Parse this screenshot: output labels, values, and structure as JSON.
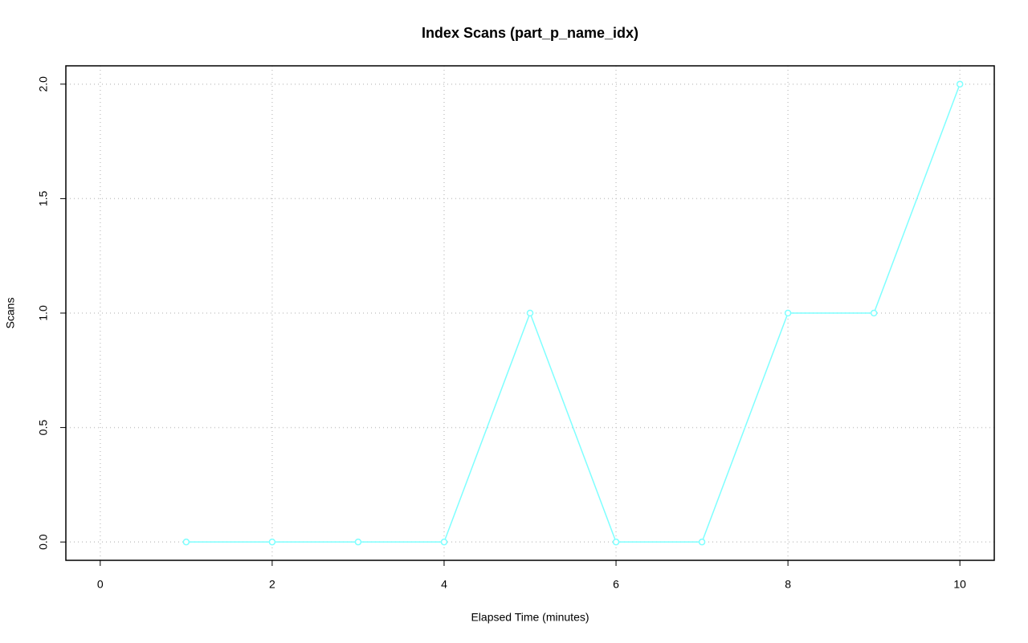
{
  "chart_data": {
    "type": "line",
    "title": "Index Scans (part_p_name_idx)",
    "x_label": "Elapsed Time (minutes)",
    "y_label": "Scans",
    "x": [
      1,
      2,
      3,
      4,
      5,
      6,
      7,
      8,
      9,
      10
    ],
    "values": [
      0,
      0,
      0,
      0,
      1,
      0,
      0,
      1,
      1,
      2
    ],
    "color": "#7fffff",
    "xlim": [
      -0.4,
      10.4
    ],
    "ylim": [
      -0.08,
      2.08
    ],
    "xticks": [
      0,
      2,
      4,
      6,
      8,
      10
    ],
    "yticks": [
      {
        "value": 0,
        "label": "0.0"
      },
      {
        "value": 0.5,
        "label": "0.5"
      },
      {
        "value": 1,
        "label": "1.0"
      },
      {
        "value": 1.5,
        "label": "1.5"
      },
      {
        "value": 2,
        "label": "2.0"
      }
    ],
    "grid": true
  }
}
